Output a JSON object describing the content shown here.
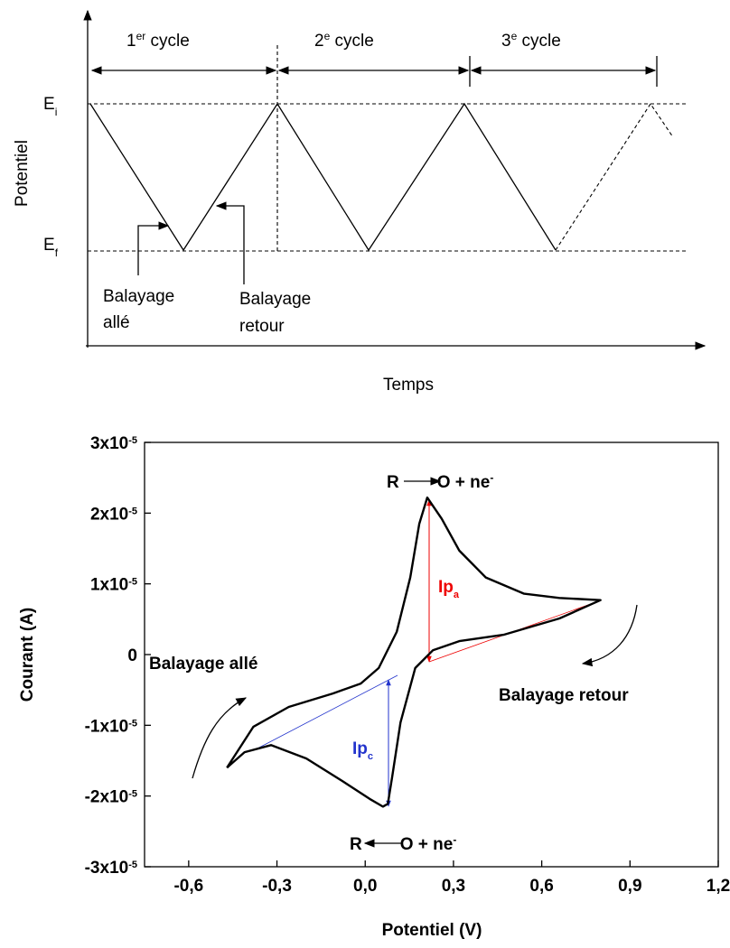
{
  "chart_data": [
    {
      "type": "schematic",
      "cycle_labels": [
        [
          "1",
          "er",
          " cycle"
        ],
        [
          "2",
          "e",
          " cycle"
        ],
        [
          "3",
          "e",
          " cycle"
        ]
      ],
      "y_levels": [
        [
          "E",
          "i"
        ],
        [
          "E",
          "f"
        ]
      ],
      "ylabel": "Potentiel",
      "xlabel": "Temps",
      "annotations": [
        [
          "Balayage",
          "allé"
        ],
        [
          "Balayage",
          "retour"
        ]
      ]
    },
    {
      "type": "line",
      "xlabel": "Potentiel (V)",
      "ylabel": "Courant (A)",
      "x": [
        -0.47,
        -0.38,
        -0.26,
        -0.11,
        -0.015,
        0.046,
        0.107,
        0.153,
        0.184,
        0.211,
        0.26,
        0.32,
        0.41,
        0.54,
        0.66,
        0.8,
        0.66,
        0.47,
        0.32,
        0.23,
        0.17,
        0.12,
        0.092,
        0.077,
        0.06,
        0.015,
        -0.077,
        -0.2,
        -0.32,
        -0.41,
        -0.47
      ],
      "series": [
        {
          "color": "#000000",
          "values": [
            -1.6e-05,
            -1.02e-05,
            -7.4e-06,
            -5.5e-06,
            -4.1e-06,
            -1.9e-06,
            3.2e-06,
            1.09e-05,
            1.85e-05,
            2.22e-05,
            1.92e-05,
            1.47e-05,
            1.09e-05,
            8.6e-06,
            8e-06,
            7.7e-06,
            5.1e-06,
            2.8e-06,
            1.9e-06,
            6e-07,
            -1.9e-06,
            -9.6e-06,
            -1.72e-05,
            -2.11e-05,
            -2.15e-05,
            -2.04e-05,
            -1.79e-05,
            -1.47e-05,
            -1.28e-05,
            -1.38e-05,
            -1.6e-05
          ]
        }
      ],
      "xlim": [
        -0.75,
        1.2
      ],
      "ylim": [
        -3e-05,
        3e-05
      ],
      "xticks": [
        {
          "value": -0.6,
          "label": "-0,6"
        },
        {
          "value": -0.3,
          "label": "-0,3"
        },
        {
          "value": 0.0,
          "label": "0,0"
        },
        {
          "value": 0.3,
          "label": "0,3"
        },
        {
          "value": 0.6,
          "label": "0,6"
        },
        {
          "value": 0.9,
          "label": "0,9"
        },
        {
          "value": 1.2,
          "label": "1,2"
        }
      ],
      "yticks": [
        {
          "value": -3e-05,
          "label": "-3x10-5"
        },
        {
          "value": -2e-05,
          "label": "-2x10-5"
        },
        {
          "value": -1e-05,
          "label": "-1x10-5"
        },
        0,
        {
          "value": 1e-05,
          "label": "1x10-5"
        },
        {
          "value": 2e-05,
          "label": "2x10-5"
        },
        {
          "value": 3e-05,
          "label": "3x10-5"
        }
      ],
      "peak_labels": [
        [
          "R",
          "O + ne",
          "-"
        ],
        [
          "R",
          "O + ne",
          "-"
        ]
      ],
      "ip_labels": [
        [
          "Ip",
          "a"
        ],
        [
          "Ip",
          "c"
        ]
      ],
      "scan_labels": [
        "Balayage allé",
        "Balayage retour"
      ]
    }
  ]
}
